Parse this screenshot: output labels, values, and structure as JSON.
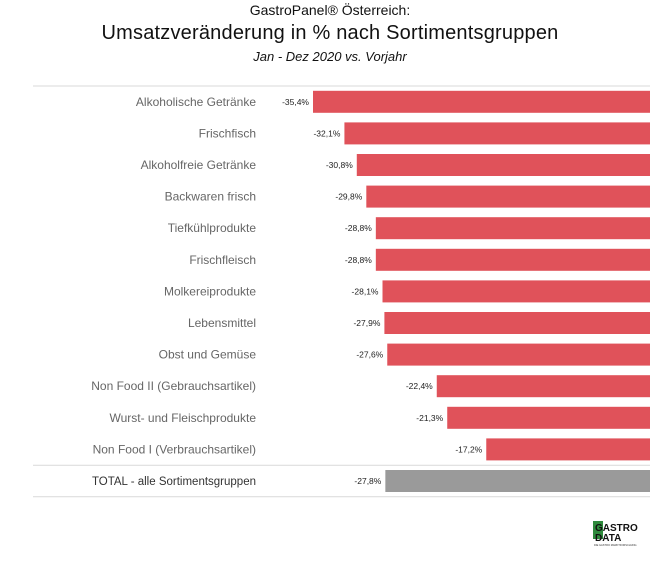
{
  "header": {
    "line1": "GastroPanel® Österreich:",
    "line2": "Umsatzveränderung in % nach Sortimentsgruppen",
    "line3": "Jan - Dez 2020 vs. Vorjahr"
  },
  "logo": {
    "line1": "GASTRO",
    "line2": "DATA",
    "tagline": "DIE GASTRO MARKTFORSCHUNG"
  },
  "colors": {
    "bar": "#e0525a",
    "total_bar": "#9a9a9a",
    "grid": "#d9d9d9",
    "logo_green": "#2e8a3c"
  },
  "chart_data": {
    "type": "bar",
    "orientation": "horizontal",
    "categories": [
      "Alkoholische Getränke",
      "Frischfisch",
      "Alkoholfreie Getränke",
      "Backwaren frisch",
      "Tiefkühlprodukte",
      "Frischfleisch",
      "Molkereiprodukte",
      "Lebensmittel",
      "Obst und Gemüse",
      "Non Food II (Gebrauchsartikel)",
      "Wurst- und Fleischprodukte",
      "Non Food I (Verbrauchsartikel)",
      "TOTAL - alle Sortimentsgruppen"
    ],
    "values": [
      -35.4,
      -32.1,
      -30.8,
      -29.8,
      -28.8,
      -28.8,
      -28.1,
      -27.9,
      -27.6,
      -22.4,
      -21.3,
      -17.2,
      -27.8
    ],
    "value_labels": [
      "-35,4%",
      "-32,1%",
      "-30,8%",
      "-29,8%",
      "-28,8%",
      "-28,8%",
      "-28,1%",
      "-27,9%",
      "-27,6%",
      "-22,4%",
      "-21,3%",
      "-17,2%",
      "-27,8%"
    ],
    "total_index": 12,
    "xlim": [
      -40,
      0
    ]
  }
}
